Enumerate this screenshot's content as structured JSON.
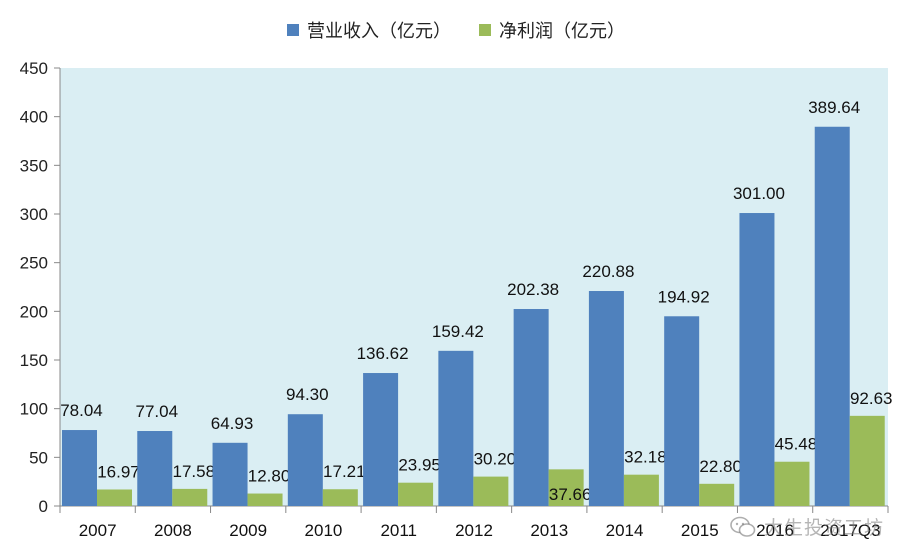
{
  "chart_data": {
    "type": "bar",
    "categories": [
      "2007",
      "2008",
      "2009",
      "2010",
      "2011",
      "2012",
      "2013",
      "2014",
      "2015",
      "2016",
      "2017Q3"
    ],
    "series": [
      {
        "name": "营业收入（亿元）",
        "color": "#4f81bd",
        "values": [
          78.04,
          77.04,
          64.93,
          94.3,
          136.62,
          159.42,
          202.38,
          220.88,
          194.92,
          301.0,
          389.64
        ],
        "labels": [
          "78.04",
          "77.04",
          "64.93",
          "94.30",
          "136.62",
          "159.42",
          "202.38",
          "220.88",
          "194.92",
          "301.00",
          "389.64"
        ]
      },
      {
        "name": "净利润（亿元）",
        "color": "#9bbb59",
        "values": [
          16.97,
          17.58,
          12.8,
          17.21,
          23.95,
          30.2,
          37.66,
          32.18,
          22.8,
          45.48,
          92.63
        ],
        "labels": [
          "16.97",
          "17.58",
          "12.80",
          "17.21",
          "23.95",
          "30.20",
          "37.66",
          "32.18",
          "22.80",
          "45.48",
          "92.63"
        ]
      }
    ],
    "ylim": [
      0,
      450
    ],
    "yticks": [
      0,
      50,
      100,
      150,
      200,
      250,
      300,
      350,
      400,
      450
    ],
    "title": "",
    "xlabel": "",
    "ylabel": "",
    "legend": "top-center",
    "plot_background": "#daeef3"
  },
  "watermark": {
    "text": "大生投资工坊",
    "icon": "wechat-icon"
  }
}
